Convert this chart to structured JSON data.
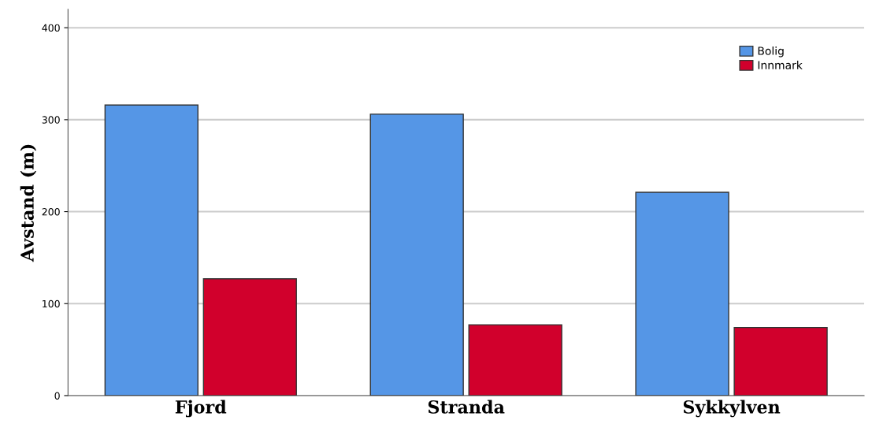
{
  "chart_data": {
    "type": "bar",
    "ylabel": "Avstand (m)",
    "categories": [
      "Fjord",
      "Stranda",
      "Sykkylven"
    ],
    "series": [
      {
        "name": "Bolig",
        "color": "#5596e6",
        "values": [
          316,
          306,
          221
        ]
      },
      {
        "name": "Innmark",
        "color": "#d1002c",
        "values": [
          127,
          77,
          74
        ]
      }
    ],
    "ylim": [
      0,
      420
    ],
    "yticks": [
      0,
      100,
      200,
      300,
      400
    ],
    "grid": "y",
    "legend": "top right"
  }
}
